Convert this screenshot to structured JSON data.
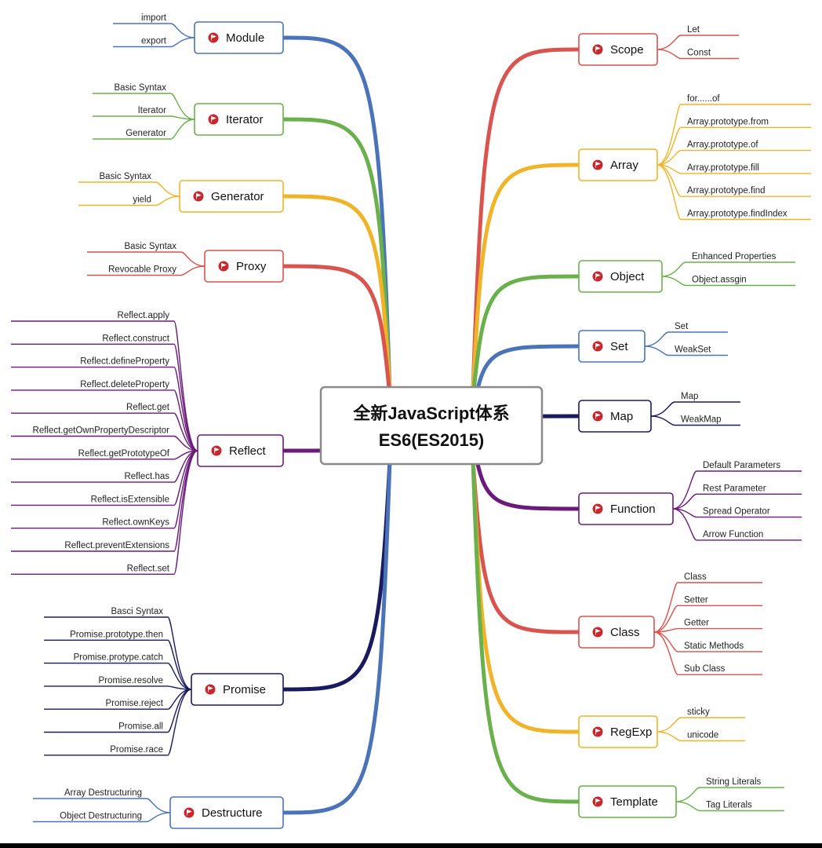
{
  "root": {
    "line1": "全新JavaScript体系",
    "line2": "ES6(ES2015)"
  },
  "colors": {
    "blue": "#4a73b8",
    "green": "#6ab04c",
    "yellow": "#f0b429",
    "red": "#d9534f",
    "purple": "#6a1b7a",
    "navy": "#1a1a5e",
    "icon": "#c8282d"
  },
  "topics": [
    {
      "label": "Module",
      "color": "blue",
      "side": "left",
      "items": [
        "import",
        "export"
      ]
    },
    {
      "label": "Iterator",
      "color": "green",
      "side": "left",
      "items": [
        "Basic Syntax",
        "Iterator",
        "Generator"
      ]
    },
    {
      "label": "Generator",
      "color": "yellow",
      "side": "left",
      "items": [
        "Basic Syntax",
        "yield"
      ]
    },
    {
      "label": "Proxy",
      "color": "red",
      "side": "left",
      "items": [
        "Basic Syntax",
        "Revocable Proxy"
      ]
    },
    {
      "label": "Reflect",
      "color": "purple",
      "side": "left",
      "items": [
        "Reflect.apply",
        "Reflect.construct",
        "Reflect.defineProperty",
        "Reflect.deleteProperty",
        "Reflect.get",
        "Reflect.getOwnPropertyDescriptor",
        "Reflect.getPrototypeOf",
        "Reflect.has",
        "Reflect.isExtensible",
        "Reflect.ownKeys",
        "Reflect.preventExtensions",
        "Reflect.set"
      ]
    },
    {
      "label": "Promise",
      "color": "navy",
      "side": "left",
      "items": [
        "Basci Syntax",
        "Promise.prototype.then",
        "Promise.protype.catch",
        "Promise.resolve",
        "Promise.reject",
        "Promise.all",
        "Promise.race"
      ]
    },
    {
      "label": "Destructure",
      "color": "blue",
      "side": "left",
      "items": [
        "Array Destructuring",
        "Object Destructuring"
      ]
    },
    {
      "label": "Scope",
      "color": "red",
      "side": "right",
      "items": [
        "Let",
        "Const"
      ]
    },
    {
      "label": "Array",
      "color": "yellow",
      "side": "right",
      "items": [
        "for......of",
        "Array.prototype.from",
        "Array.prototype.of",
        "Array.prototype.fill",
        "Array.prototype.find",
        "Array.prototype.findIndex"
      ]
    },
    {
      "label": "Object",
      "color": "green",
      "side": "right",
      "items": [
        "Enhanced Properties",
        "Object.assgin"
      ]
    },
    {
      "label": "Set",
      "color": "blue",
      "side": "right",
      "items": [
        "Set",
        "WeakSet"
      ]
    },
    {
      "label": "Map",
      "color": "navy",
      "side": "right",
      "items": [
        "Map",
        "WeakMap"
      ]
    },
    {
      "label": "Function",
      "color": "purple",
      "side": "right",
      "items": [
        "Default Parameters",
        "Rest Parameter",
        "Spread Operator",
        "Arrow Function"
      ]
    },
    {
      "label": "Class",
      "color": "red",
      "side": "right",
      "items": [
        "Class",
        "Setter",
        "Getter",
        "Static Methods",
        "Sub Class"
      ]
    },
    {
      "label": "RegExp",
      "color": "yellow",
      "side": "right",
      "items": [
        "sticky",
        "unicode"
      ]
    },
    {
      "label": "Template",
      "color": "green",
      "side": "right",
      "items": [
        "String Literals",
        "Tag Literals"
      ]
    }
  ]
}
